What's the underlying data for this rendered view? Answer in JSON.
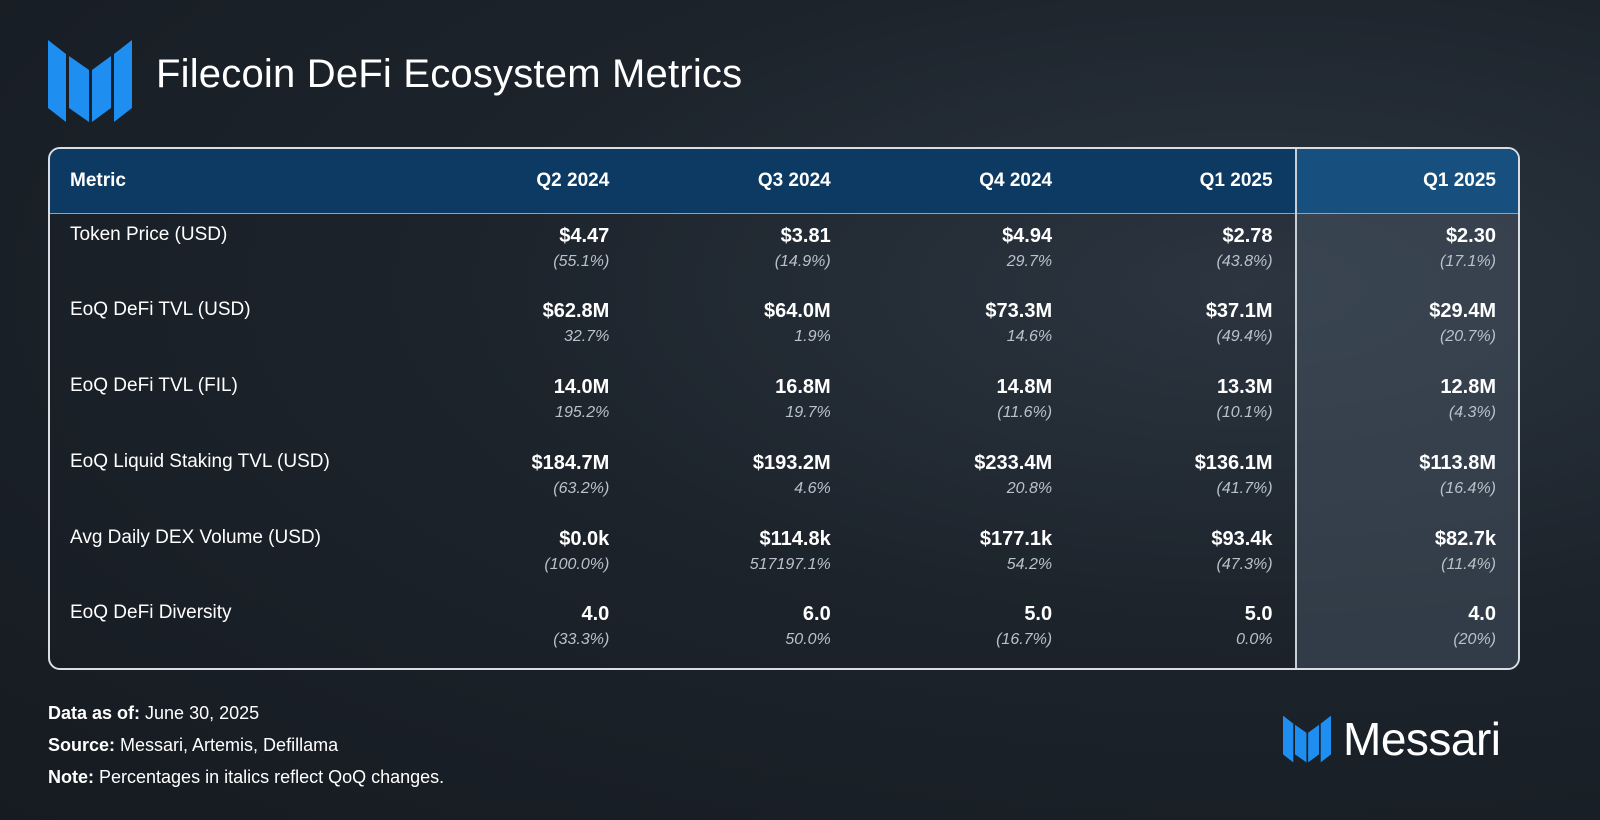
{
  "header": {
    "title": "Filecoin DeFi Ecosystem Metrics",
    "logo_icon": "messari-m-icon"
  },
  "colors": {
    "accent": "#1e8ff0",
    "header_bg": "#0d3a63",
    "highlight_header_bg": "#17507f"
  },
  "chart_data": {
    "type": "table",
    "title": "Filecoin DeFi Ecosystem Metrics",
    "columns": [
      "Metric",
      "Q2 2024",
      "Q3 2024",
      "Q4 2024",
      "Q1 2025",
      "Q1 2025"
    ],
    "highlighted_column": 5,
    "rows": [
      {
        "metric": "Token Price (USD)",
        "values": [
          "$4.47",
          "$3.81",
          "$4.94",
          "$2.78",
          "$2.30"
        ],
        "changes": [
          "(55.1%)",
          "(14.9%)",
          "29.7%",
          "(43.8%)",
          "(17.1%)"
        ]
      },
      {
        "metric": "EoQ DeFi TVL (USD)",
        "values": [
          "$62.8M",
          "$64.0M",
          "$73.3M",
          "$37.1M",
          "$29.4M"
        ],
        "changes": [
          "32.7%",
          "1.9%",
          "14.6%",
          "(49.4%)",
          "(20.7%)"
        ]
      },
      {
        "metric": "EoQ DeFi TVL (FIL)",
        "values": [
          "14.0M",
          "16.8M",
          "14.8M",
          "13.3M",
          "12.8M"
        ],
        "changes": [
          "195.2%",
          "19.7%",
          "(11.6%)",
          "(10.1%)",
          "(4.3%)"
        ]
      },
      {
        "metric": "EoQ Liquid Staking TVL (USD)",
        "values": [
          "$184.7M",
          "$193.2M",
          "$233.4M",
          "$136.1M",
          "$113.8M"
        ],
        "changes": [
          "(63.2%)",
          "4.6%",
          "20.8%",
          "(41.7%)",
          "(16.4%)"
        ]
      },
      {
        "metric": "Avg Daily DEX Volume (USD)",
        "values": [
          "$0.0k",
          "$114.8k",
          "$177.1k",
          "$93.4k",
          "$82.7k"
        ],
        "changes": [
          "(100.0%)",
          "517197.1%",
          "54.2%",
          "(47.3%)",
          "(11.4%)"
        ]
      },
      {
        "metric": "EoQ DeFi Diversity",
        "values": [
          "4.0",
          "6.0",
          "5.0",
          "5.0",
          "4.0"
        ],
        "changes": [
          "(33.3%)",
          "50.0%",
          "(16.7%)",
          "0.0%",
          "(20%)"
        ]
      }
    ]
  },
  "footer": {
    "data_as_of_label": "Data as of:",
    "data_as_of_value": " June 30, 2025",
    "source_label": "Source:",
    "source_value": " Messari, Artemis, Defillama",
    "note_label": "Note:",
    "note_value": " Percentages in italics reflect QoQ changes."
  },
  "brand": {
    "name": "Messari",
    "icon": "messari-m-icon"
  }
}
